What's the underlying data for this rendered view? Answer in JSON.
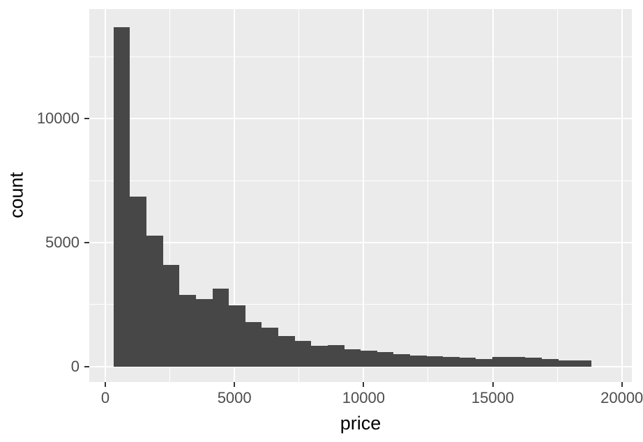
{
  "chart_data": {
    "type": "bar",
    "chart_kind": "histogram",
    "title": "",
    "xlabel": "price",
    "ylabel": "count",
    "legend_position": "none",
    "grid": true,
    "bin_start": 318.9,
    "bin_width": 637.83,
    "counts": [
      13690,
      6850,
      5280,
      4110,
      2880,
      2730,
      3150,
      2470,
      1795,
      1560,
      1220,
      1020,
      820,
      860,
      700,
      640,
      580,
      490,
      450,
      420,
      393,
      365,
      302,
      376,
      384,
      348,
      308,
      244,
      235,
      3
    ],
    "x_breaks": [
      0,
      5000,
      10000,
      15000,
      20000
    ],
    "x_tick_labels": [
      "0",
      "5000",
      "10000",
      "15000",
      "20000"
    ],
    "x_minor_breaks": [
      2500,
      7500,
      12500,
      17500
    ],
    "y_breaks": [
      0,
      5000,
      10000
    ],
    "y_tick_labels": [
      "0",
      "5000",
      "10000"
    ],
    "y_minor_breaks": [
      2500,
      7500,
      12500
    ],
    "xlim": [
      -621,
      20386
    ],
    "ylim": [
      -630,
      14429
    ],
    "colors": {
      "bar": "#474747",
      "panel_bg": "#EBEBEB",
      "grid": "#FFFFFF",
      "tick_mark": "#333333",
      "tick_label": "#4D4D4D",
      "axis_title": "#000000",
      "background": "#FFFFFF"
    }
  }
}
